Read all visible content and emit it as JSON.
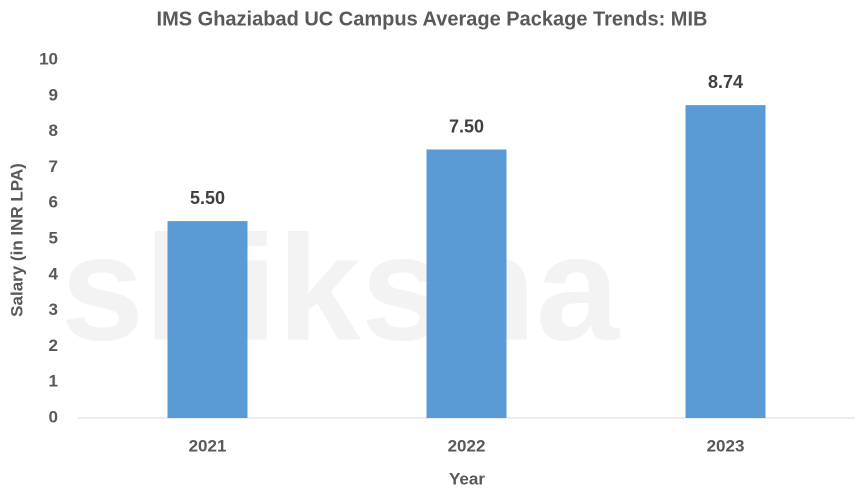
{
  "chart_data": {
    "type": "bar",
    "title": "IMS Ghaziabad UC Campus Average Package Trends: MIB",
    "watermark": "shiksha",
    "categories": [
      "2021",
      "2022",
      "2023"
    ],
    "values": [
      5.5,
      7.5,
      8.74
    ],
    "value_labels": [
      "5.50",
      "7.50",
      "8.74"
    ],
    "color": "#5b9bd5",
    "ylim": [
      0,
      10
    ],
    "yticks": [
      0,
      1,
      2,
      3,
      4,
      5,
      6,
      7,
      8,
      9,
      10
    ],
    "grid": false,
    "x_label": "Year",
    "y_label": "Salary (in INR LPA)"
  }
}
